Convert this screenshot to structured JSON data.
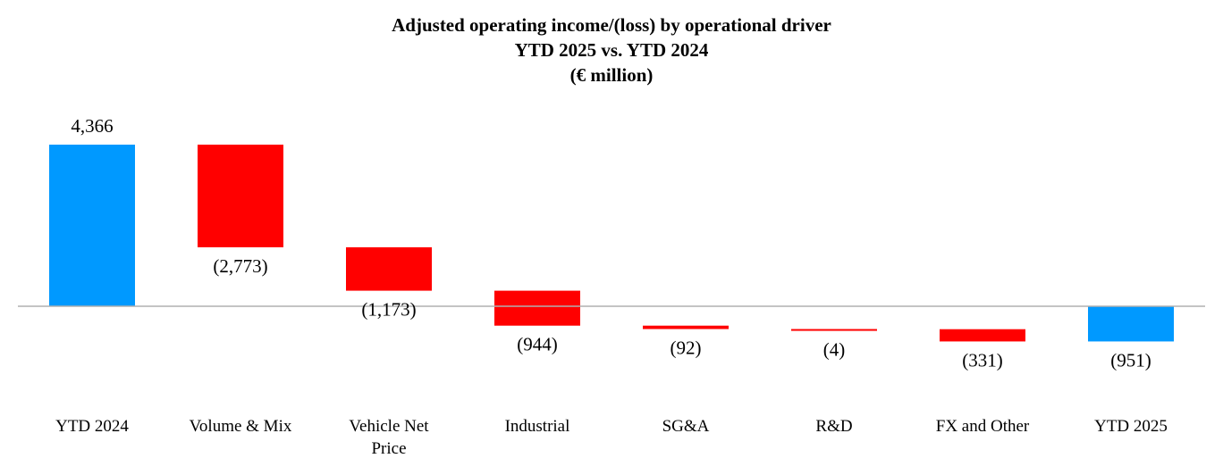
{
  "chart_data": {
    "type": "bar",
    "subtype": "waterfall",
    "title": "Adjusted operating income/(loss) by operational driver",
    "subtitle": "YTD 2025 vs. YTD 2024",
    "unit_label": "(€ million)",
    "categories": [
      [
        "YTD 2024"
      ],
      [
        "Volume & Mix"
      ],
      [
        "Vehicle Net",
        "Price"
      ],
      [
        "Industrial"
      ],
      [
        "SG&A"
      ],
      [
        "R&D"
      ],
      [
        "FX and Other"
      ],
      [
        "YTD 2025"
      ]
    ],
    "values": [
      4366,
      -2773,
      -1173,
      -944,
      -92,
      -4,
      -331,
      -951
    ],
    "kinds": [
      "total",
      "delta",
      "delta",
      "delta",
      "delta",
      "delta",
      "delta",
      "total"
    ],
    "value_labels": [
      "4,366",
      "(2,773)",
      "(1,173)",
      "(944)",
      "(92)",
      "(4)",
      "(331)",
      "(951)"
    ],
    "colors": {
      "total": "#0099FF",
      "decrease": "#FF0000",
      "baseline": "#B0B0B0"
    },
    "ylim": [
      -2250,
      5000
    ],
    "grid": false,
    "legend": "none"
  }
}
